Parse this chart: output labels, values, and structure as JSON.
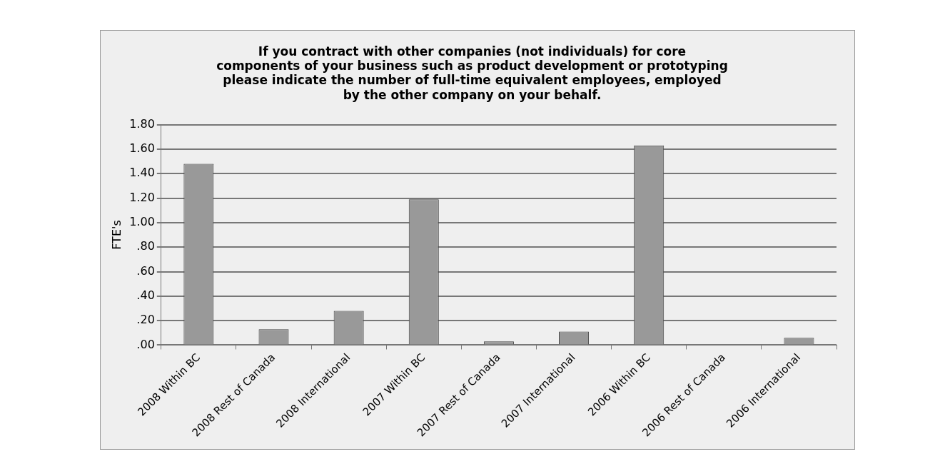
{
  "chart_data": {
    "type": "bar",
    "title": "If you contract with other companies (not individuals) for core\ncomponents of your business such as product development or prototyping\nplease indicate the number of full-time equivalent employees, employed\nby the other company on your behalf.",
    "ylabel": "FTE's",
    "categories": [
      "2008 Within BC",
      "2008 Rest of Canada",
      "2008 International",
      "2007 Within BC",
      "2007 Rest of Canada",
      "2007 International",
      "2006 Within BC",
      "2006 Rest of Canada",
      "2006 International"
    ],
    "values": [
      1.48,
      0.13,
      0.28,
      1.19,
      0.03,
      0.11,
      1.63,
      0,
      0.06
    ],
    "color": "#999999",
    "ylim": [
      0,
      1.8
    ],
    "yticks": [
      {
        "value": 0,
        "label": ".00"
      },
      {
        "value": 0.2,
        "label": ".20"
      },
      {
        "value": 0.4,
        "label": ".40"
      },
      {
        "value": 0.6,
        "label": ".60"
      },
      {
        "value": 0.8,
        "label": ".80"
      },
      {
        "value": 1,
        "label": "1.00"
      },
      {
        "value": 1.2,
        "label": "1.20"
      },
      {
        "value": 1.4,
        "label": "1.40"
      },
      {
        "value": 1.6,
        "label": "1.60"
      },
      {
        "value": 1.8,
        "label": "1.80"
      }
    ],
    "grid": "y"
  }
}
